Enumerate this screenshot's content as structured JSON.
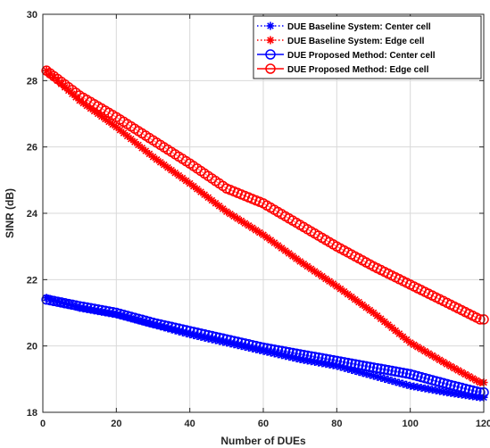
{
  "chart_data": {
    "type": "scatter",
    "xlabel": "Number of DUEs",
    "ylabel": "SINR (dB)",
    "xlim": [
      0,
      120
    ],
    "ylim": [
      18,
      30
    ],
    "xticks": [
      "0",
      "20",
      "40",
      "60",
      "80",
      "100",
      "120"
    ],
    "yticks": [
      "18",
      "20",
      "22",
      "24",
      "26",
      "28",
      "30"
    ],
    "grid": true,
    "legend_position": "top-right",
    "series": [
      {
        "name": "DUE Baseline System: Center cell",
        "color": "#0000ff",
        "marker": "asterisk",
        "line": "dotted",
        "x": [
          1,
          10,
          20,
          30,
          40,
          50,
          60,
          70,
          80,
          90,
          100,
          110,
          119
        ],
        "y": [
          21.45,
          21.15,
          20.95,
          20.65,
          20.35,
          20.1,
          19.85,
          19.6,
          19.4,
          19.1,
          18.8,
          18.6,
          18.45
        ]
      },
      {
        "name": "DUE Baseline System: Edge cell",
        "color": "#ff0000",
        "marker": "asterisk",
        "line": "dotted",
        "x": [
          1,
          10,
          20,
          30,
          40,
          50,
          60,
          70,
          80,
          90,
          100,
          110,
          119
        ],
        "y": [
          28.3,
          27.4,
          26.6,
          25.7,
          24.9,
          24.05,
          23.35,
          22.55,
          21.8,
          21.0,
          20.1,
          19.45,
          18.9
        ]
      },
      {
        "name": "DUE Proposed Method: Center cell",
        "color": "#0000ff",
        "marker": "circle",
        "line": "solid",
        "x": [
          1,
          10,
          20,
          30,
          40,
          50,
          60,
          70,
          80,
          90,
          100,
          110,
          119
        ],
        "y": [
          21.4,
          21.2,
          21.0,
          20.7,
          20.45,
          20.2,
          19.95,
          19.75,
          19.55,
          19.35,
          19.15,
          18.85,
          18.6
        ]
      },
      {
        "name": "DUE Proposed Method:  Edge cell",
        "color": "#ff0000",
        "marker": "circle",
        "line": "solid",
        "x": [
          1,
          10,
          20,
          30,
          40,
          50,
          60,
          70,
          80,
          90,
          100,
          110,
          119
        ],
        "y": [
          28.3,
          27.55,
          26.9,
          26.2,
          25.5,
          24.75,
          24.3,
          23.65,
          23.0,
          22.4,
          21.85,
          21.3,
          20.8
        ]
      }
    ]
  }
}
